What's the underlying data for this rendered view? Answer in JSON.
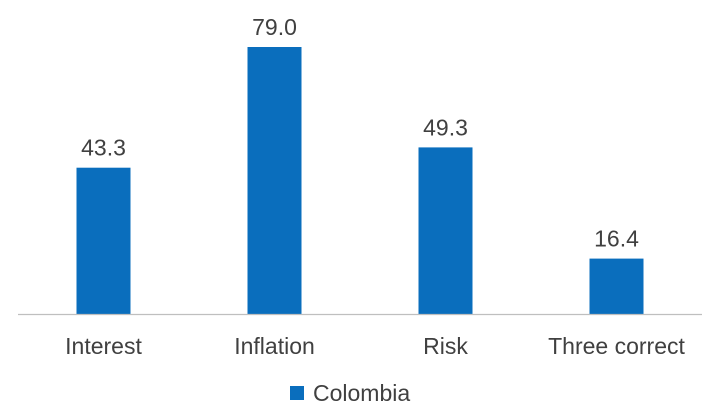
{
  "chart_data": {
    "type": "bar",
    "categories": [
      "Interest",
      "Inflation",
      "Risk",
      "Three correct"
    ],
    "series": [
      {
        "name": "Colombia",
        "values": [
          43.3,
          79.0,
          49.3,
          16.4
        ],
        "labels": [
          "43.3",
          "79.0",
          "49.3",
          "16.4"
        ],
        "color": "#0A6EBD"
      }
    ],
    "ylim": [
      0,
      100
    ],
    "grid": false,
    "legend": "bottom-center",
    "axis_color": "#BFBFBF"
  }
}
